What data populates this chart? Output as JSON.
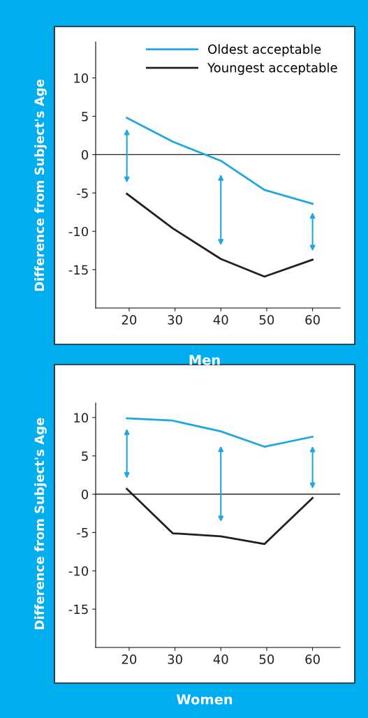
{
  "chart_data": [
    {
      "type": "line",
      "title": "Men",
      "ylabel": "Difference from Subject's Age",
      "x": [
        19.5,
        29.5,
        40,
        49.5,
        60
      ],
      "xlim": [
        12.7,
        66
      ],
      "ylim": [
        -20,
        14.7
      ],
      "xticks": [
        20,
        30,
        40,
        50,
        60
      ],
      "yticks": [
        -15,
        -10,
        -5,
        0,
        5,
        10
      ],
      "legend": "top",
      "grid": false,
      "ref_lines": [
        {
          "axis": "y",
          "value": 0,
          "color": "#231f20"
        }
      ],
      "series": [
        {
          "name": "Oldest acceptable",
          "color": "#1ea7e1",
          "values": [
            4.8,
            1.7,
            -0.8,
            -4.6,
            -6.4
          ]
        },
        {
          "name": "Youngest acceptable",
          "color": "#231f20",
          "values": [
            -5.1,
            -9.6,
            -13.6,
            -15.9,
            -13.7
          ]
        }
      ]
    },
    {
      "type": "line",
      "title": "Women",
      "ylabel": "Difference from Subject's Age",
      "x": [
        19.5,
        29.5,
        40,
        49.5,
        60
      ],
      "xlim": [
        12.7,
        66
      ],
      "ylim": [
        -20,
        11.9
      ],
      "xticks": [
        20,
        30,
        40,
        50,
        60
      ],
      "yticks": [
        -15,
        -10,
        -5,
        0,
        5,
        10
      ],
      "grid": false,
      "ref_lines": [
        {
          "axis": "y",
          "value": 0,
          "color": "#231f20"
        }
      ],
      "series": [
        {
          "color": "#1ea7e1",
          "values": [
            9.9,
            9.6,
            8.2,
            6.2,
            7.5
          ]
        },
        {
          "color": "#231f20",
          "values": [
            0.7,
            -5.1,
            -5.5,
            -6.5,
            -0.5
          ]
        }
      ]
    }
  ]
}
